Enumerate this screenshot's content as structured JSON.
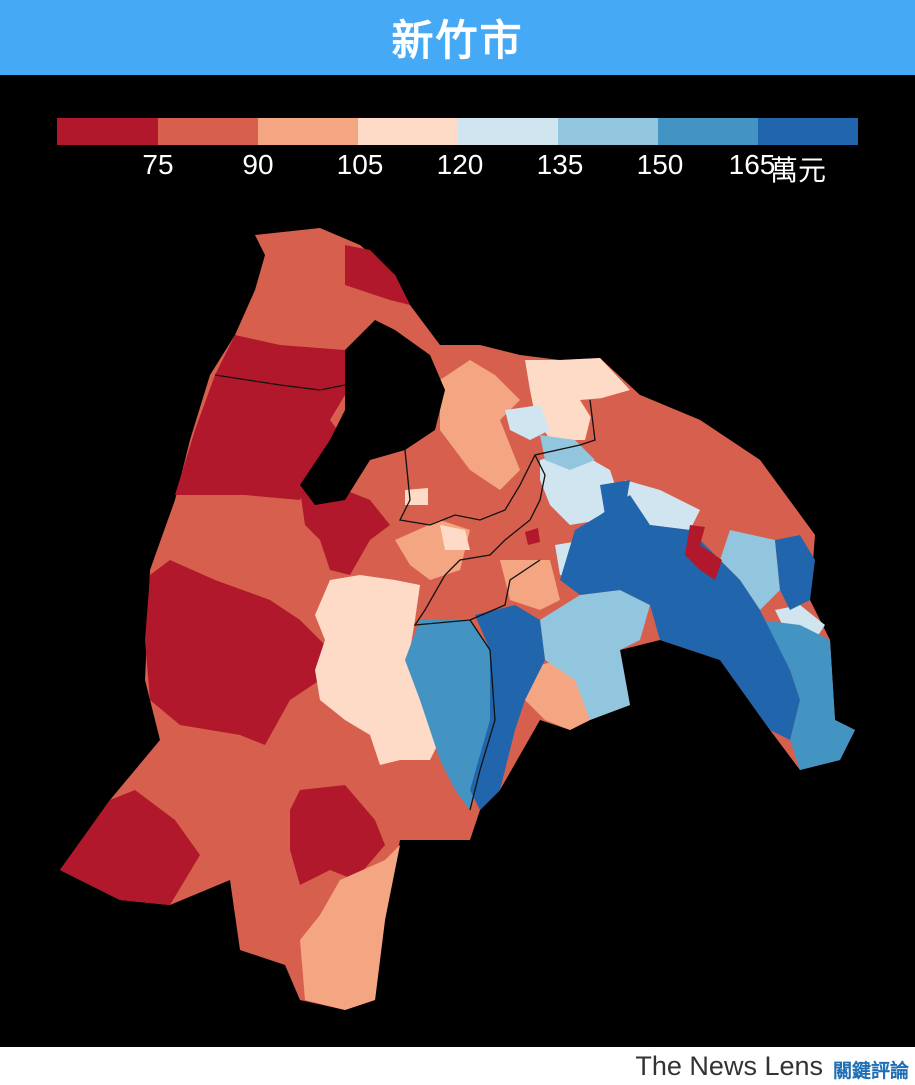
{
  "title": "新竹市",
  "legend": {
    "ticks": [
      "75",
      "90",
      "105",
      "120",
      "135",
      "150",
      "165"
    ],
    "unit": "萬元",
    "colors": [
      "#b2182b",
      "#d6604d",
      "#f4a582",
      "#fddbc7",
      "#d1e5f0",
      "#92c5de",
      "#4393c3",
      "#2166ac"
    ]
  },
  "footer": {
    "brand": "The News Lens",
    "brand_cn": "關鍵評論"
  }
}
